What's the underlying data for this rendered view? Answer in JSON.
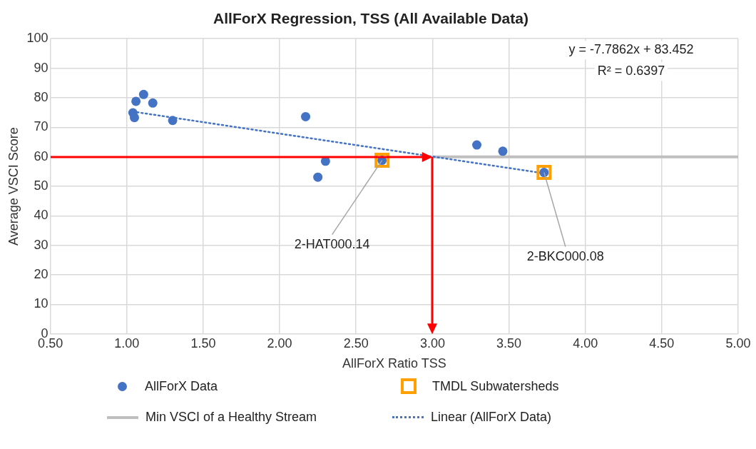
{
  "chart_data": {
    "type": "scatter",
    "title": "AllForX Regression, TSS (All Available Data)",
    "xlabel": "AllForX Ratio TSS",
    "ylabel": "Average VSCI Score",
    "xlim": [
      0.5,
      5.0
    ],
    "xticks": [
      {
        "value": 0.5,
        "label": "0.50"
      },
      {
        "value": 1,
        "label": "1.00"
      },
      {
        "value": 1.5,
        "label": "1.50"
      },
      {
        "value": 2,
        "label": "2.00"
      },
      {
        "value": 2.5,
        "label": "2.50"
      },
      {
        "value": 3,
        "label": "3.00"
      },
      {
        "value": 3.5,
        "label": "3.50"
      },
      {
        "value": 4,
        "label": "4.00"
      },
      {
        "value": 4.5,
        "label": "4.50"
      },
      {
        "value": 5,
        "label": "5.00"
      }
    ],
    "ylim": [
      0,
      100
    ],
    "yticks": [
      0,
      10,
      20,
      30,
      40,
      50,
      60,
      70,
      80,
      90,
      100
    ],
    "grid": true,
    "legend": "bottom",
    "series": [
      {
        "name": "Min VSCI of a Healthy Stream",
        "type": "line",
        "color": "#bfbfbf",
        "x": [
          3.0,
          5.0
        ],
        "values": [
          60,
          60
        ],
        "marker": "none",
        "line_style": "solid"
      },
      {
        "name": "Linear (AllForX Data)",
        "type": "line",
        "color": "#4472c4",
        "x": [
          1.04,
          3.73
        ],
        "values": [
          75.3,
          54.4
        ],
        "marker": "none",
        "line_style": "dotted"
      },
      {
        "name": "AllForX Data",
        "type": "scatter",
        "color": "#4472c4",
        "marker": "circle",
        "x": [
          1.04,
          1.05,
          1.06,
          1.11,
          1.17,
          1.3,
          2.17,
          2.25,
          2.3,
          2.67,
          3.29,
          3.46,
          3.73
        ],
        "values": [
          74.9,
          73.3,
          78.8,
          81.1,
          78.2,
          72.3,
          73.6,
          53.1,
          58.5,
          58.8,
          64.0,
          61.9,
          54.7
        ]
      },
      {
        "name": "TMDL Subwatersheds",
        "type": "scatter",
        "color": "#ffa000",
        "marker": "square",
        "x": [
          2.67,
          3.73
        ],
        "values": [
          58.8,
          54.7
        ]
      }
    ],
    "annotations": [
      "y = -7.7862x + 83.452",
      "R² = 0.6397",
      {
        "text": "2-HAT000.14",
        "x": 2.67,
        "y": 58.8
      },
      {
        "text": "2-BKC000.08",
        "x": 3.73,
        "y": 54.7
      }
    ]
  }
}
